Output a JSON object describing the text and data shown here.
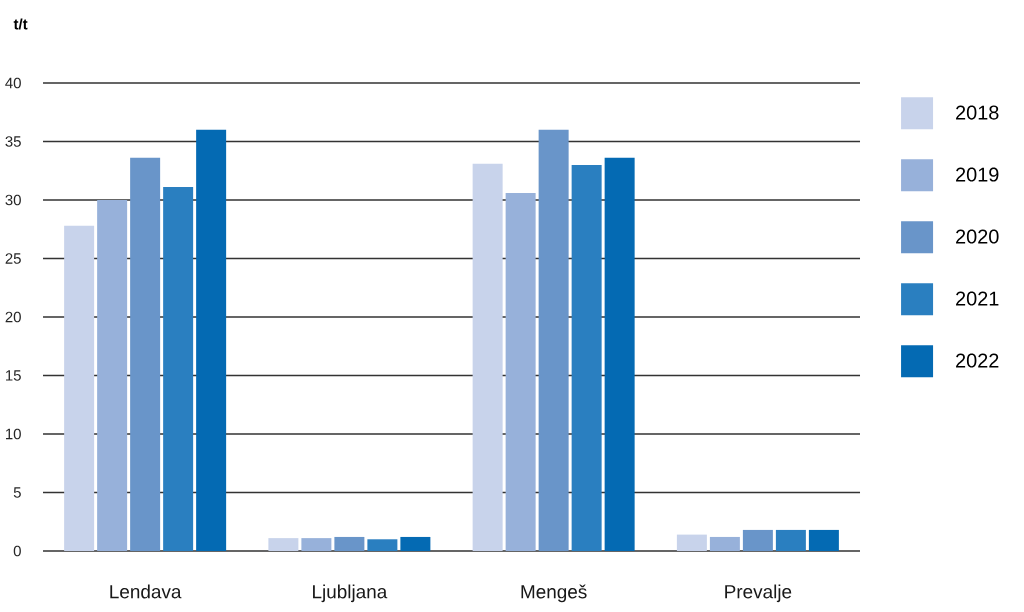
{
  "chart_data": {
    "type": "bar",
    "ylabel": "t/t",
    "categories": [
      "Lendava",
      "Ljubljana",
      "Mengeš",
      "Prevalje"
    ],
    "series": [
      {
        "name": "2018",
        "color": "#c8d3eb",
        "values": [
          27.8,
          1.1,
          33.1,
          1.4
        ]
      },
      {
        "name": "2019",
        "color": "#97b1da",
        "values": [
          30.0,
          1.1,
          30.6,
          1.2
        ]
      },
      {
        "name": "2020",
        "color": "#6995c9",
        "values": [
          33.6,
          1.2,
          36.0,
          1.8
        ]
      },
      {
        "name": "2021",
        "color": "#2a7fc0",
        "values": [
          31.1,
          1.0,
          33.0,
          1.8
        ]
      },
      {
        "name": "2022",
        "color": "#046ab3",
        "values": [
          36.0,
          1.2,
          33.6,
          1.8
        ]
      }
    ],
    "ylim": [
      0,
      40
    ],
    "yticks": [
      0,
      5,
      10,
      15,
      20,
      25,
      30,
      35,
      40
    ],
    "grid": "y",
    "legend": "right"
  }
}
